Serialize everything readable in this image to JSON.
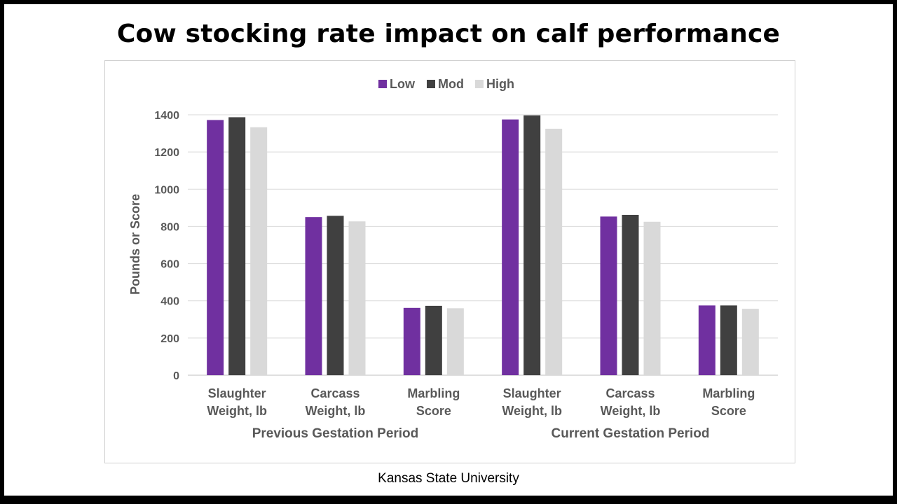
{
  "title": "Cow stocking rate impact on calf performance",
  "source": "Kansas State University",
  "chart_data": {
    "type": "bar",
    "ylabel": "Pounds or Score",
    "xlabel": "",
    "ylim": [
      0,
      1400
    ],
    "yticks": [
      0,
      200,
      400,
      600,
      800,
      1000,
      1200,
      1400
    ],
    "grid": true,
    "legend_position": "top-center",
    "groups": [
      {
        "label": "Previous Gestation Period",
        "categories": [
          [
            "Slaughter",
            "Weight, lb"
          ],
          [
            "Carcass",
            "Weight, lb"
          ],
          [
            "Marbling",
            "Score"
          ]
        ]
      },
      {
        "label": "Current Gestation Period",
        "categories": [
          [
            "Slaughter",
            "Weight, lb"
          ],
          [
            "Carcass",
            "Weight, lb"
          ],
          [
            "Marbling",
            "Score"
          ]
        ]
      }
    ],
    "series": [
      {
        "name": "Low",
        "color": "#7030a0",
        "values": [
          1372,
          850,
          362,
          1375,
          853,
          375
        ]
      },
      {
        "name": "Mod",
        "color": "#404040",
        "values": [
          1387,
          857,
          373,
          1397,
          862,
          375
        ]
      },
      {
        "name": "High",
        "color": "#d9d9d9",
        "values": [
          1333,
          827,
          360,
          1325,
          825,
          357
        ]
      }
    ]
  }
}
